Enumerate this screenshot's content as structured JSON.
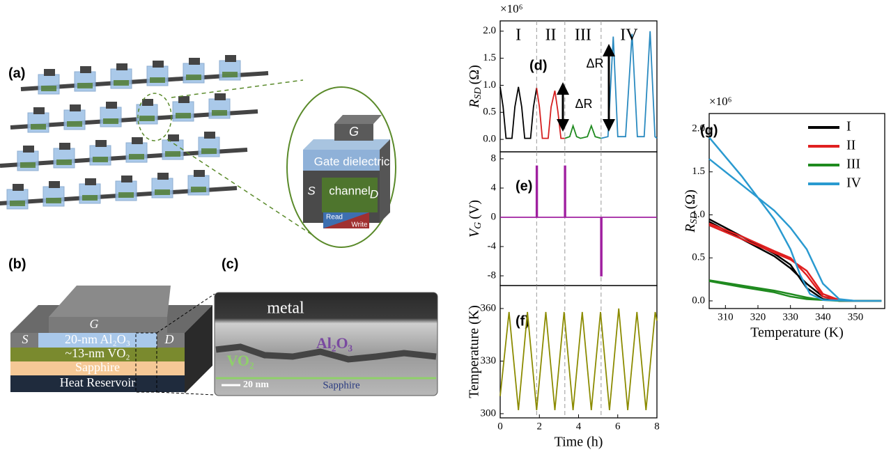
{
  "figure": {
    "a": {
      "label": "(a)",
      "G": "G",
      "dielectric": "Gate dielectric",
      "S": "S",
      "channel": "channel",
      "D": "D",
      "read": "Read",
      "write": "Write"
    },
    "b": {
      "label": "(b)",
      "G": "G",
      "S": "S",
      "D": "D",
      "al2o3": "20-nm Al₂O₃",
      "vo2": "~13-nm VO₂",
      "sapphire": "Sapphire",
      "reservoir": "Heat Reservoir"
    },
    "c": {
      "label": "(c)",
      "metal": "metal",
      "al2o3": "Al₂O₃",
      "vo2": "VO₂",
      "scale": "20 nm",
      "sapphire": "Sapphire"
    }
  },
  "chart_data": [
    {
      "type": "line",
      "panel_label": "(d)",
      "multiplier": "×10⁶",
      "ylabel": {
        "symbol": "R",
        "subscript": "SD",
        "unit": "(Ω)"
      },
      "xlim": [
        0,
        8
      ],
      "ylim": [
        -0.23,
        2.19
      ],
      "yticks": [
        {
          "value": 0,
          "label": "0.0"
        },
        0.5,
        {
          "value": 1,
          "label": "1.0"
        },
        1.5,
        {
          "value": 2,
          "label": "2.0"
        }
      ],
      "vlines": [
        1.86,
        3.3,
        5.15
      ],
      "annotations": [
        "ΔR",
        "ΔR"
      ],
      "series": [
        {
          "name": "I",
          "color": "#000000",
          "x": [
            0,
            0.15,
            0.3,
            0.6,
            0.75,
            0.93,
            1.1,
            1.25,
            1.55,
            1.7,
            1.86
          ],
          "values": [
            0.97,
            0.6,
            0.02,
            0.02,
            0.6,
            0.97,
            0.6,
            0.02,
            0.02,
            0.6,
            0.95
          ]
        },
        {
          "name": "II",
          "color": "#d62020",
          "x": [
            1.86,
            2.0,
            2.15,
            2.45,
            2.6,
            2.79,
            2.95,
            3.1,
            3.3
          ],
          "values": [
            0.95,
            0.6,
            0.02,
            0.02,
            0.6,
            0.9,
            0.5,
            0.02,
            0.02
          ]
        },
        {
          "name": "III",
          "color": "#1f8a1f",
          "x": [
            3.3,
            3.55,
            3.72,
            3.9,
            4.1,
            4.45,
            4.65,
            4.85,
            5.15
          ],
          "values": [
            0.02,
            0.05,
            0.25,
            0.05,
            0.02,
            0.05,
            0.25,
            0.05,
            0.02
          ]
        },
        {
          "name": "IV",
          "color": "#2a8ac0",
          "x": [
            5.15,
            5.5,
            5.77,
            6.0,
            6.4,
            6.73,
            7.0,
            7.35,
            7.65,
            7.9,
            8
          ],
          "values": [
            0.02,
            0.05,
            1.9,
            0.05,
            0.05,
            1.95,
            0.05,
            0.05,
            2.0,
            0.05,
            0.02
          ]
        }
      ]
    },
    {
      "type": "line",
      "panel_label": "(e)",
      "ylabel": {
        "symbol": "V",
        "subscript": "G",
        "unit": "(V)"
      },
      "xlim": [
        0,
        8
      ],
      "ylim": [
        -9.33,
        8.95
      ],
      "yticks": [
        -8,
        -4,
        0,
        4,
        8
      ],
      "vlines": [
        1.86,
        3.3,
        5.15
      ],
      "series": [
        {
          "color": "#a020a0",
          "x": [
            0,
            1.84,
            1.84,
            1.9,
            1.9,
            3.28,
            3.28,
            3.34,
            3.34,
            5.13,
            5.13,
            5.19,
            5.19,
            8
          ],
          "values": [
            0,
            0,
            7,
            7,
            0,
            0,
            7,
            7,
            0,
            0,
            -8,
            -8,
            0,
            0
          ]
        }
      ]
    },
    {
      "type": "line",
      "panel_label": "(f)",
      "ylabel": "Temperature (K)",
      "xlabel": "Time (h)",
      "xlim": [
        0,
        8
      ],
      "ylim": [
        297.6,
        373.1
      ],
      "xticks": [
        0,
        2,
        4,
        6,
        8
      ],
      "yticks": [
        300,
        330,
        360
      ],
      "vlines": [
        1.86,
        3.3,
        5.15
      ],
      "series": [
        {
          "color": "#8b8b00",
          "x": [
            0,
            0.45,
            0.93,
            1.39,
            1.86,
            2.33,
            2.79,
            3.26,
            3.72,
            4.19,
            4.65,
            5.12,
            5.58,
            6.05,
            6.51,
            6.98,
            7.44,
            7.91,
            8
          ],
          "values": [
            310,
            358,
            302,
            358,
            302,
            358,
            302,
            358,
            302,
            358,
            302,
            358,
            302,
            360,
            302,
            358,
            302,
            358,
            353
          ]
        }
      ]
    },
    {
      "type": "line",
      "panel_label": "(g)",
      "multiplier": "×10⁶",
      "ylabel": {
        "symbol": "R",
        "subscript": "SD",
        "unit": "(Ω)"
      },
      "xlabel": "Temperature (K)",
      "xlim": [
        305,
        359
      ],
      "ylim": [
        -0.089,
        2.178
      ],
      "xticks": [
        310,
        320,
        330,
        340,
        350
      ],
      "yticks": [
        {
          "value": 0,
          "label": "0.0"
        },
        0.5,
        {
          "value": 1,
          "label": "1.0"
        },
        1.5,
        {
          "value": 2,
          "label": "2.0"
        }
      ],
      "legend": "upper right",
      "series": [
        {
          "name": "I",
          "color": "#000000",
          "x": [
            305,
            315,
            325,
            330,
            335,
            340,
            345,
            350,
            358,
            350,
            345,
            340,
            335,
            330,
            325,
            315,
            305
          ],
          "values": [
            0.95,
            0.75,
            0.55,
            0.42,
            0.15,
            0.02,
            0,
            0,
            0,
            0,
            0.01,
            0.05,
            0.2,
            0.38,
            0.52,
            0.72,
            0.92
          ]
        },
        {
          "name": "II",
          "color": "#e02020",
          "x": [
            305,
            315,
            325,
            330,
            335,
            340,
            345,
            350,
            358,
            350,
            345,
            340,
            335,
            330,
            325,
            315,
            305
          ],
          "values": [
            0.9,
            0.75,
            0.58,
            0.5,
            0.3,
            0.05,
            0,
            0,
            0,
            0,
            0.01,
            0.08,
            0.35,
            0.48,
            0.56,
            0.72,
            0.88
          ]
        },
        {
          "name": "III",
          "color": "#1f8a1f",
          "x": [
            305,
            315,
            325,
            330,
            335,
            340,
            345,
            350,
            358,
            350,
            345,
            340,
            335,
            330,
            325,
            315,
            305
          ],
          "values": [
            0.24,
            0.18,
            0.12,
            0.08,
            0.04,
            0.01,
            0,
            0,
            0,
            0,
            0,
            0.01,
            0.02,
            0.05,
            0.1,
            0.16,
            0.23
          ]
        },
        {
          "name": "IV",
          "color": "#2a9ad0",
          "x": [
            305,
            315,
            325,
            330,
            333,
            336,
            340,
            350,
            358,
            350,
            345,
            340,
            335,
            330,
            325,
            315,
            305
          ],
          "values": [
            1.9,
            1.45,
            0.95,
            0.6,
            0.3,
            0.08,
            0.01,
            0,
            0,
            0,
            0.02,
            0.2,
            0.6,
            0.85,
            1.05,
            1.35,
            1.65
          ]
        }
      ]
    }
  ]
}
